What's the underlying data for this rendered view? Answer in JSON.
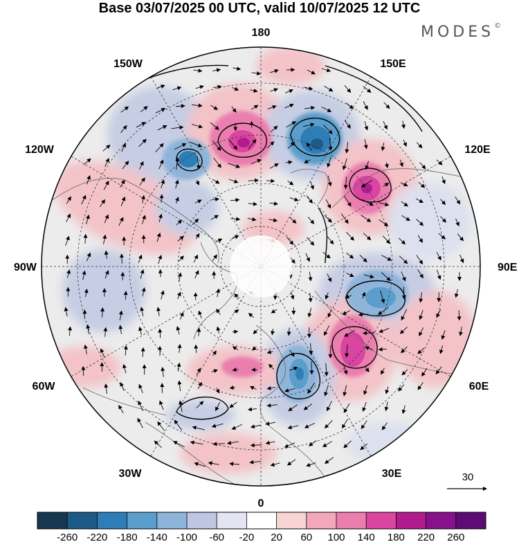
{
  "title": "Base 03/07/2025 00 UTC, valid 10/07/2025 12 UTC",
  "brand": "MODES",
  "brand_mark": "©",
  "map": {
    "projection": "north-polar-stereographic",
    "longitude_labels": {
      "top": "180",
      "bottom": "0",
      "left": "90W",
      "right": "90E",
      "upper_left_1": "150W",
      "upper_left_2": "120W",
      "upper_right_1": "150E",
      "upper_right_2": "120E",
      "lower_left_1": "60W",
      "lower_left_2": "30W",
      "lower_right_1": "60E",
      "lower_right_2": "30E"
    },
    "reference_vector": "30",
    "anomaly_centers": [
      {
        "sign": "negative",
        "strength": "strong",
        "location": "East Siberian Sea / 150E"
      },
      {
        "sign": "positive",
        "strength": "strong",
        "location": "Bering region / 165W"
      },
      {
        "sign": "negative",
        "strength": "moderate",
        "location": "Alaska / 140W"
      },
      {
        "sign": "positive",
        "strength": "strong",
        "location": "East Siberia / 120E"
      },
      {
        "sign": "negative",
        "strength": "moderate",
        "location": "West Siberia / 80E"
      },
      {
        "sign": "positive",
        "strength": "strong",
        "location": "Urals / 50E"
      },
      {
        "sign": "negative",
        "strength": "moderate",
        "location": "Scandinavia / 15E"
      },
      {
        "sign": "positive",
        "strength": "moderate",
        "location": "Greenland Sea"
      }
    ],
    "colors": {
      "negative_strong": "#2e74ad",
      "negative_light": "#c6cde4",
      "positive_strong": "#d51f8c",
      "positive_light": "#f3c3c8",
      "neutral": "#ececec"
    }
  },
  "colorbar": {
    "tick_labels": [
      "-260",
      "-220",
      "-180",
      "-140",
      "-100",
      "-60",
      "-20",
      "20",
      "60",
      "100",
      "140",
      "180",
      "220",
      "260"
    ],
    "colors": [
      "#16374f",
      "#1e5a86",
      "#2e7db7",
      "#5b9ecb",
      "#8fb4d9",
      "#bec6e1",
      "#e3e5f2",
      "#ffffff",
      "#f7d3d4",
      "#f2a8b8",
      "#ea7eae",
      "#d945a0",
      "#b01c8e",
      "#86118a",
      "#5c0c73"
    ]
  }
}
